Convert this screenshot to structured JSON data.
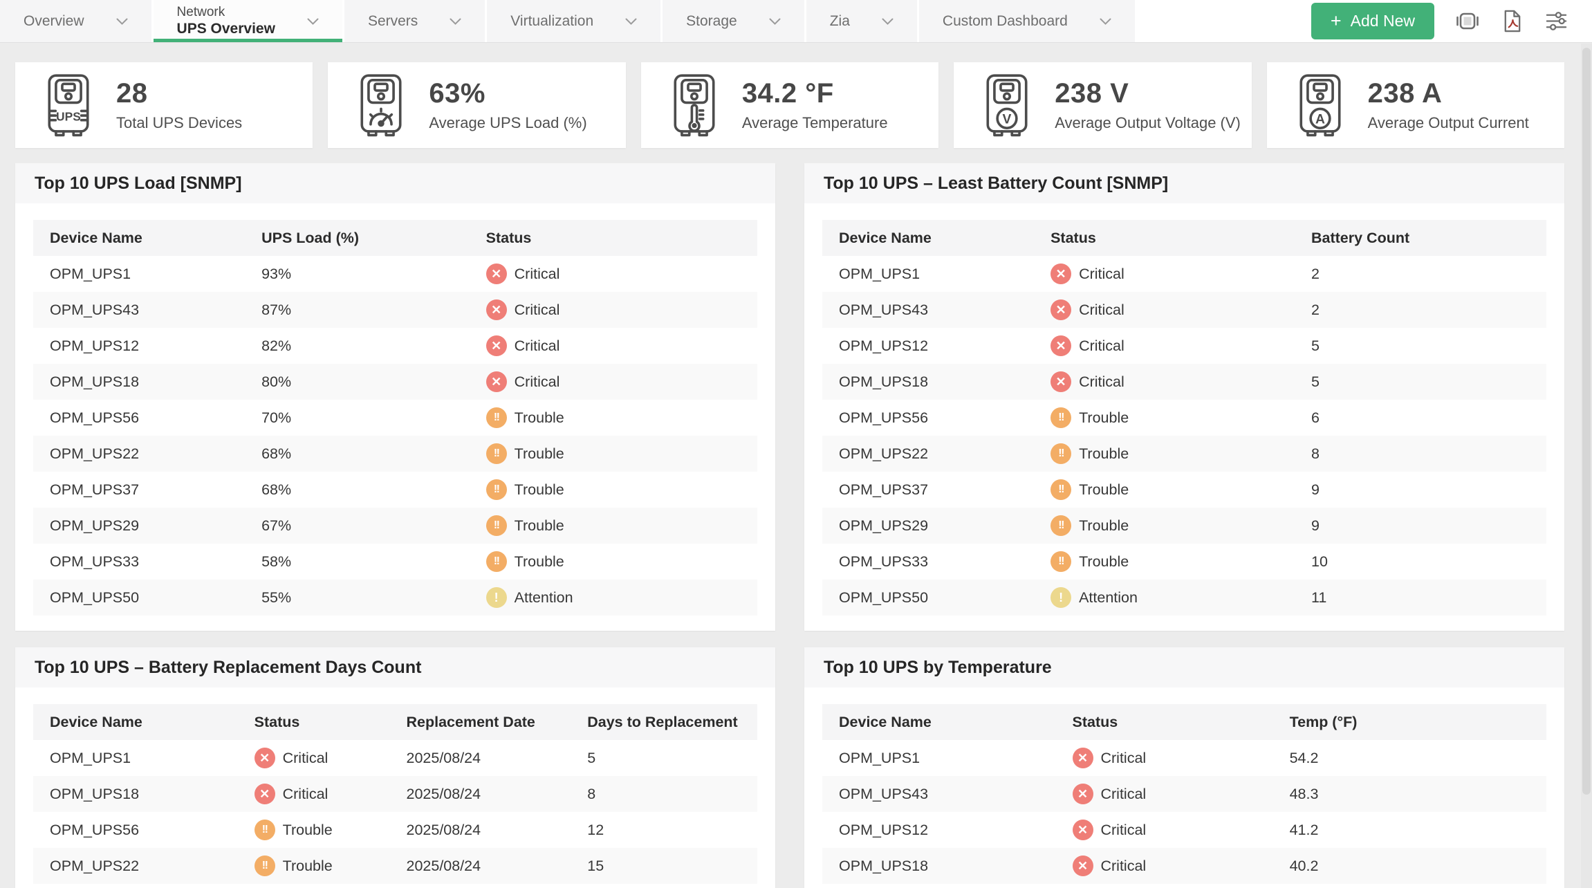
{
  "nav": {
    "tabs": [
      {
        "label": "Overview"
      },
      {
        "sup": "Network",
        "label": "UPS Overview",
        "active": true
      },
      {
        "label": "Servers"
      },
      {
        "label": "Virtualization"
      },
      {
        "label": "Storage"
      },
      {
        "label": "Zia"
      },
      {
        "label": "Custom Dashboard"
      }
    ],
    "add_button_label": "Add New",
    "add_button_icon": "plus-icon",
    "toolbar_icons": [
      "slideshow-icon",
      "pdf-export-icon",
      "filter-sliders-icon"
    ],
    "accent_green": "#42b178"
  },
  "stats": [
    {
      "icon": "ups-device-icon",
      "value": "28",
      "label": "Total UPS Devices"
    },
    {
      "icon": "ups-load-gauge-icon",
      "value": "63%",
      "label": "Average UPS Load (%)"
    },
    {
      "icon": "ups-temperature-icon",
      "value": "34.2 °F",
      "label": "Average Temperature"
    },
    {
      "icon": "ups-voltage-icon",
      "value": "238 V",
      "label": "Average Output Voltage (V)"
    },
    {
      "icon": "ups-current-icon",
      "value": "238 A",
      "label": "Average Output Current"
    }
  ],
  "status_colors": {
    "Critical": "#ef7e77",
    "Trouble": "#f3ad65",
    "Attention": "#ecd88d"
  },
  "panels": [
    {
      "title": "Top 10 UPS Load [SNMP]",
      "columns": [
        "Device Name",
        "UPS Load (%)",
        "Status"
      ],
      "rows": [
        [
          "OPM_UPS1",
          "93%",
          {
            "status": "Critical"
          }
        ],
        [
          "OPM_UPS43",
          "87%",
          {
            "status": "Critical"
          }
        ],
        [
          "OPM_UPS12",
          "82%",
          {
            "status": "Critical"
          }
        ],
        [
          "OPM_UPS18",
          "80%",
          {
            "status": "Critical"
          }
        ],
        [
          "OPM_UPS56",
          "70%",
          {
            "status": "Trouble"
          }
        ],
        [
          "OPM_UPS22",
          "68%",
          {
            "status": "Trouble"
          }
        ],
        [
          "OPM_UPS37",
          "68%",
          {
            "status": "Trouble"
          }
        ],
        [
          "OPM_UPS29",
          "67%",
          {
            "status": "Trouble"
          }
        ],
        [
          "OPM_UPS33",
          "58%",
          {
            "status": "Trouble"
          }
        ],
        [
          "OPM_UPS50",
          "55%",
          {
            "status": "Attention"
          }
        ]
      ]
    },
    {
      "title": "Top 10 UPS – Least Battery Count [SNMP]",
      "columns": [
        "Device Name",
        "Status",
        "Battery Count"
      ],
      "rows": [
        [
          "OPM_UPS1",
          {
            "status": "Critical"
          },
          "2"
        ],
        [
          "OPM_UPS43",
          {
            "status": "Critical"
          },
          "2"
        ],
        [
          "OPM_UPS12",
          {
            "status": "Critical"
          },
          "5"
        ],
        [
          "OPM_UPS18",
          {
            "status": "Critical"
          },
          "5"
        ],
        [
          "OPM_UPS56",
          {
            "status": "Trouble"
          },
          "6"
        ],
        [
          "OPM_UPS22",
          {
            "status": "Trouble"
          },
          "8"
        ],
        [
          "OPM_UPS37",
          {
            "status": "Trouble"
          },
          "9"
        ],
        [
          "OPM_UPS29",
          {
            "status": "Trouble"
          },
          "9"
        ],
        [
          "OPM_UPS33",
          {
            "status": "Trouble"
          },
          "10"
        ],
        [
          "OPM_UPS50",
          {
            "status": "Attention"
          },
          "11"
        ]
      ]
    },
    {
      "title": "Top 10 UPS – Battery Replacement Days Count",
      "columns": [
        "Device Name",
        "Status",
        "Replacement Date",
        "Days to Replacement"
      ],
      "rows": [
        [
          "OPM_UPS1",
          {
            "status": "Critical"
          },
          "2025/08/24",
          "5"
        ],
        [
          "OPM_UPS18",
          {
            "status": "Critical"
          },
          "2025/08/24",
          "8"
        ],
        [
          "OPM_UPS56",
          {
            "status": "Trouble"
          },
          "2025/08/24",
          "12"
        ],
        [
          "OPM_UPS22",
          {
            "status": "Trouble"
          },
          "2025/08/24",
          "15"
        ]
      ]
    },
    {
      "title": "Top 10 UPS by Temperature",
      "columns": [
        "Device Name",
        "Status",
        "Temp (°F)"
      ],
      "rows": [
        [
          "OPM_UPS1",
          {
            "status": "Critical"
          },
          "54.2"
        ],
        [
          "OPM_UPS43",
          {
            "status": "Critical"
          },
          "48.3"
        ],
        [
          "OPM_UPS12",
          {
            "status": "Critical"
          },
          "41.2"
        ],
        [
          "OPM_UPS18",
          {
            "status": "Critical"
          },
          "40.2"
        ]
      ]
    }
  ]
}
